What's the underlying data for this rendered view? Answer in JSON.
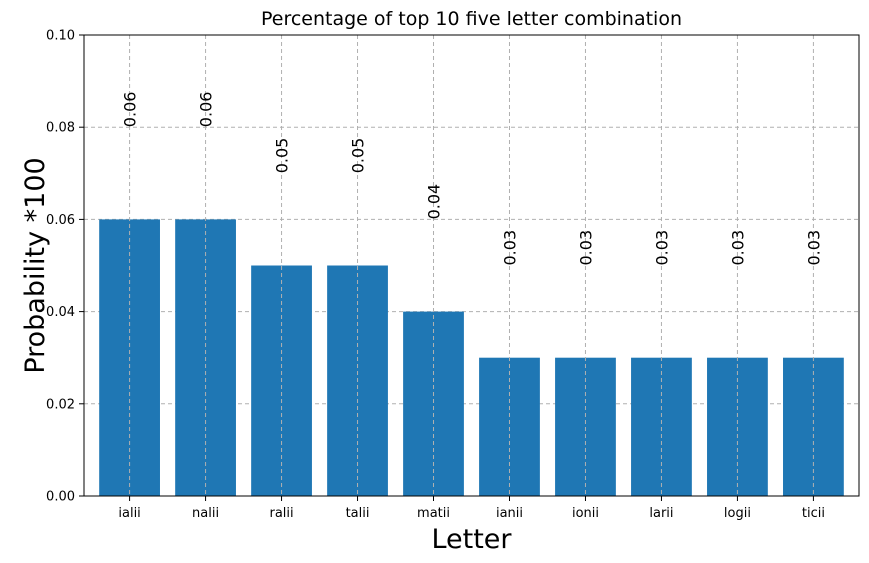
{
  "chart_data": {
    "type": "bar",
    "title": "Percentage of top 10 five letter combination",
    "xlabel": "Letter",
    "ylabel": "Probability *100",
    "categories": [
      "ialii",
      "nalii",
      "ralii",
      "talii",
      "matii",
      "ianii",
      "ionii",
      "larii",
      "logii",
      "ticii"
    ],
    "values": [
      0.06,
      0.06,
      0.05,
      0.05,
      0.04,
      0.03,
      0.03,
      0.03,
      0.03,
      0.03
    ],
    "data_labels": [
      "0.06",
      "0.06",
      "0.05",
      "0.05",
      "0.04",
      "0.03",
      "0.03",
      "0.03",
      "0.03",
      "0.03"
    ],
    "ylim": [
      0,
      0.1
    ],
    "yticks": [
      "0.00",
      "0.02",
      "0.04",
      "0.06",
      "0.08",
      "0.10"
    ],
    "grid": true,
    "legend": "none",
    "colors": {
      "bar": "#1f77b4",
      "grid": "#b0b0b0",
      "axis": "#000000"
    }
  }
}
